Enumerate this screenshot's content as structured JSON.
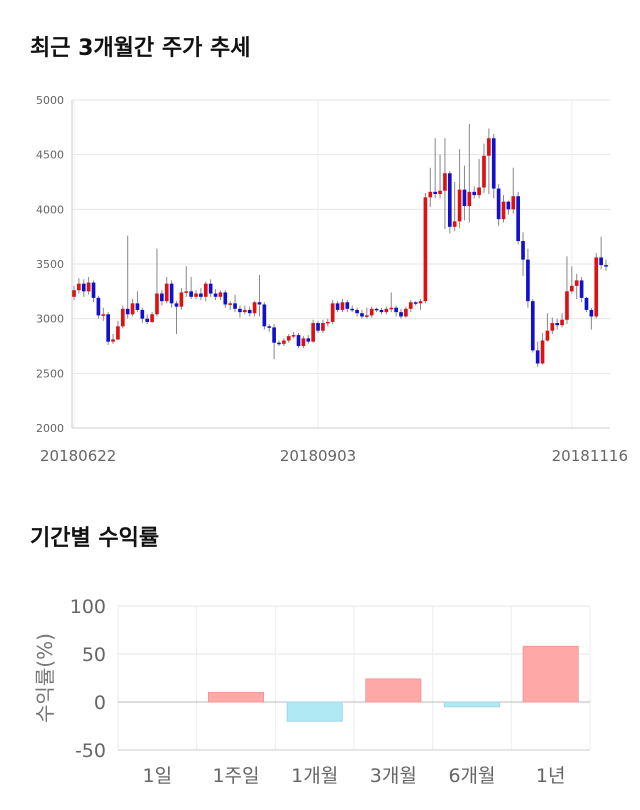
{
  "chart_data": [
    {
      "type": "candlestick",
      "title": "최근 3개월간 주가 추세",
      "ylim": [
        2000,
        5000
      ],
      "yticks": [
        2000,
        2500,
        3000,
        3500,
        4000,
        4500,
        5000
      ],
      "xtick_labels": [
        {
          "label": "20180622",
          "index": 0
        },
        {
          "label": "20180903",
          "index": 50
        },
        {
          "label": "20181116",
          "index": 102
        }
      ],
      "up_color": "#dd1111",
      "down_color": "#1111cc",
      "grid": true,
      "candles": [
        [
          3200,
          3260,
          3170,
          3300
        ],
        [
          3260,
          3320,
          3230,
          3370
        ],
        [
          3320,
          3250,
          3200,
          3360
        ],
        [
          3250,
          3330,
          3220,
          3380
        ],
        [
          3330,
          3190,
          3150,
          3350
        ],
        [
          3190,
          3030,
          3000,
          3210
        ],
        [
          3030,
          3040,
          2980,
          3100
        ],
        [
          3040,
          2790,
          2760,
          3060
        ],
        [
          2790,
          2810,
          2770,
          2860
        ],
        [
          2810,
          2930,
          2800,
          2980
        ],
        [
          2930,
          3090,
          2910,
          3120
        ],
        [
          3090,
          3040,
          3000,
          3760
        ],
        [
          3040,
          3140,
          3020,
          3180
        ],
        [
          3140,
          3080,
          3060,
          3250
        ],
        [
          3080,
          3000,
          2960,
          3100
        ],
        [
          3000,
          2970,
          2950,
          3040
        ],
        [
          2970,
          3040,
          2960,
          3060
        ],
        [
          3040,
          3230,
          3020,
          3640
        ],
        [
          3230,
          3160,
          3120,
          3260
        ],
        [
          3160,
          3320,
          3140,
          3380
        ],
        [
          3320,
          3140,
          3100,
          3350
        ],
        [
          3140,
          3110,
          2860,
          3160
        ],
        [
          3110,
          3240,
          3080,
          3280
        ],
        [
          3240,
          3250,
          3200,
          3480
        ],
        [
          3250,
          3200,
          3180,
          3380
        ],
        [
          3200,
          3230,
          3180,
          3260
        ],
        [
          3230,
          3200,
          3170,
          3280
        ],
        [
          3200,
          3320,
          3160,
          3340
        ],
        [
          3320,
          3230,
          3200,
          3360
        ],
        [
          3230,
          3200,
          3170,
          3270
        ],
        [
          3200,
          3240,
          3170,
          3260
        ],
        [
          3240,
          3130,
          3100,
          3260
        ],
        [
          3130,
          3140,
          3080,
          3160
        ],
        [
          3140,
          3090,
          3060,
          3220
        ],
        [
          3090,
          3060,
          3010,
          3120
        ],
        [
          3060,
          3080,
          3040,
          3120
        ],
        [
          3080,
          3050,
          3020,
          3110
        ],
        [
          3050,
          3150,
          3020,
          3160
        ],
        [
          3150,
          3130,
          3020,
          3400
        ],
        [
          3130,
          2930,
          2900,
          3150
        ],
        [
          2930,
          2920,
          2880,
          2950
        ],
        [
          2920,
          2780,
          2630,
          2950
        ],
        [
          2780,
          2770,
          2750,
          2800
        ],
        [
          2770,
          2800,
          2750,
          2820
        ],
        [
          2800,
          2840,
          2780,
          2860
        ],
        [
          2840,
          2850,
          2820,
          2880
        ],
        [
          2850,
          2750,
          2730,
          2870
        ],
        [
          2750,
          2820,
          2730,
          2840
        ],
        [
          2820,
          2790,
          2770,
          2850
        ],
        [
          2790,
          2960,
          2780,
          2990
        ],
        [
          2960,
          2890,
          2870,
          2980
        ],
        [
          2890,
          2960,
          2870,
          2990
        ],
        [
          2960,
          2970,
          2930,
          3000
        ],
        [
          2970,
          3140,
          2950,
          3170
        ],
        [
          3140,
          3080,
          3060,
          3160
        ],
        [
          3080,
          3150,
          3060,
          3180
        ],
        [
          3150,
          3090,
          3060,
          3170
        ],
        [
          3090,
          3080,
          3060,
          3120
        ],
        [
          3080,
          3050,
          3020,
          3100
        ],
        [
          3050,
          3020,
          3000,
          3080
        ],
        [
          3020,
          3030,
          3000,
          3100
        ],
        [
          3030,
          3090,
          3010,
          3110
        ],
        [
          3090,
          3080,
          3060,
          3100
        ],
        [
          3080,
          3060,
          3040,
          3100
        ],
        [
          3060,
          3090,
          3040,
          3110
        ],
        [
          3090,
          3100,
          3060,
          3240
        ],
        [
          3100,
          3060,
          3020,
          3120
        ],
        [
          3060,
          3020,
          3000,
          3090
        ],
        [
          3020,
          3090,
          3010,
          3110
        ],
        [
          3090,
          3150,
          3060,
          3170
        ],
        [
          3150,
          3140,
          3120,
          3160
        ],
        [
          3140,
          3160,
          3080,
          3180
        ],
        [
          3160,
          4110,
          3140,
          4150
        ],
        [
          4110,
          4160,
          4020,
          4380
        ],
        [
          4160,
          4140,
          4100,
          4650
        ],
        [
          4140,
          4170,
          4100,
          4500
        ],
        [
          4170,
          4330,
          3820,
          4650
        ],
        [
          4330,
          3840,
          3780,
          4350
        ],
        [
          3840,
          3890,
          3800,
          4250
        ],
        [
          3890,
          4180,
          3830,
          4550
        ],
        [
          4180,
          4030,
          3900,
          4400
        ],
        [
          4030,
          4160,
          3880,
          4780
        ],
        [
          4160,
          4130,
          4100,
          4210
        ],
        [
          4130,
          4200,
          4100,
          4460
        ],
        [
          4200,
          4490,
          4150,
          4600
        ],
        [
          4490,
          4650,
          4140,
          4740
        ],
        [
          4650,
          4190,
          4100,
          4690
        ],
        [
          4190,
          3910,
          3850,
          4230
        ],
        [
          3910,
          4070,
          3880,
          4130
        ],
        [
          4070,
          4000,
          3950,
          4080
        ],
        [
          4000,
          4120,
          3960,
          4380
        ],
        [
          4120,
          3710,
          3680,
          4160
        ],
        [
          3710,
          3540,
          3390,
          3790
        ],
        [
          3540,
          3160,
          3100,
          3640
        ],
        [
          3160,
          2710,
          2690,
          3180
        ],
        [
          2710,
          2590,
          2560,
          2790
        ],
        [
          2590,
          2800,
          2580,
          2870
        ],
        [
          2800,
          2890,
          2790,
          3050
        ],
        [
          2890,
          2960,
          2860,
          3010
        ],
        [
          2960,
          2940,
          2900,
          3000
        ],
        [
          2940,
          2990,
          2920,
          3050
        ],
        [
          2990,
          3250,
          2950,
          3570
        ],
        [
          3250,
          3300,
          3230,
          3480
        ],
        [
          3300,
          3350,
          3180,
          3410
        ],
        [
          3350,
          3190,
          3150,
          3380
        ],
        [
          3190,
          3080,
          3060,
          3200
        ],
        [
          3080,
          3020,
          2900,
          3100
        ],
        [
          3020,
          3560,
          3000,
          3600
        ],
        [
          3560,
          3490,
          3450,
          3750
        ],
        [
          3490,
          3480,
          3440,
          3540
        ]
      ]
    },
    {
      "type": "bar",
      "title": "기간별 수익률",
      "ylabel": "수익률(%)",
      "categories": [
        "1일",
        "1주일",
        "1개월",
        "3개월",
        "6개월",
        "1년"
      ],
      "values": [
        0,
        10,
        -20,
        24,
        -5,
        58
      ],
      "ylim": [
        -50,
        100
      ],
      "yticks": [
        -50,
        0,
        50,
        100
      ],
      "positive_color": "#ffa8a8",
      "negative_color": "#b0e8f4",
      "grid": true
    }
  ]
}
